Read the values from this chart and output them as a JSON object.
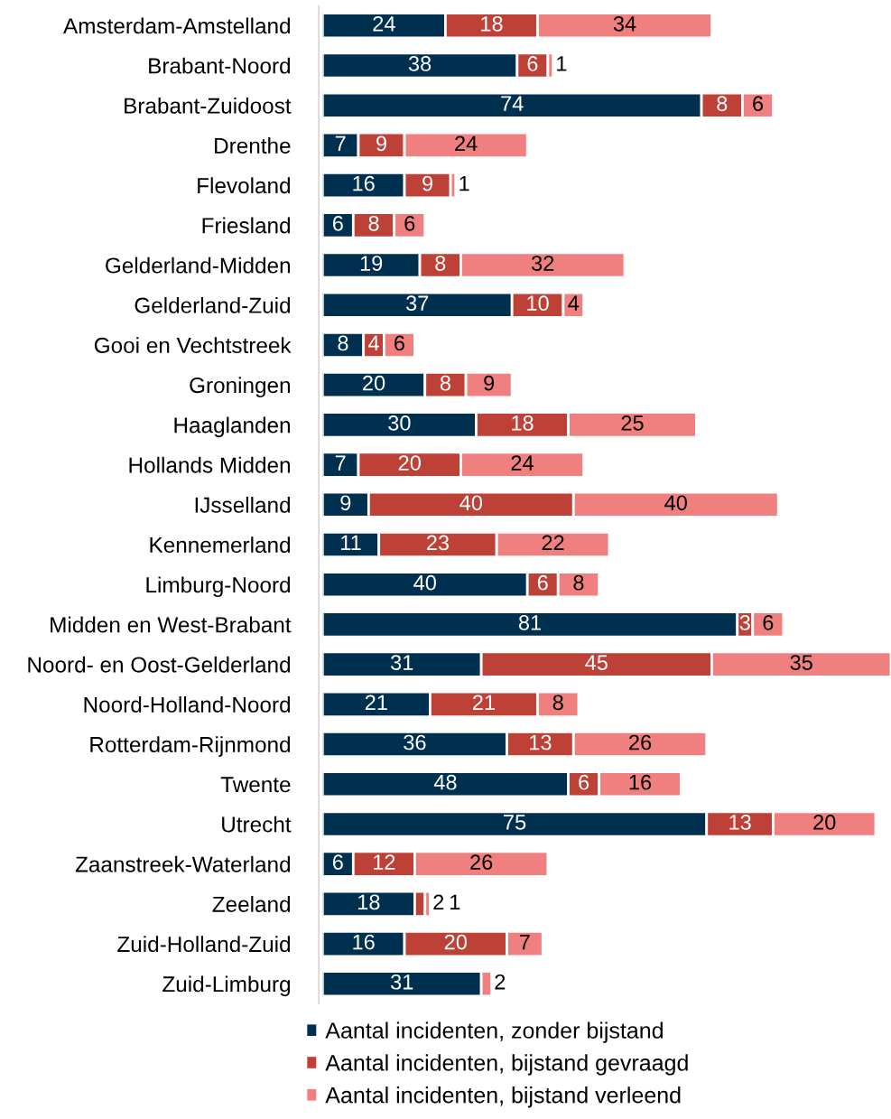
{
  "chart_data": {
    "type": "bar",
    "orientation": "horizontal",
    "stacked": true,
    "categories": [
      "Amsterdam-Amstelland",
      "Brabant-Noord",
      "Brabant-Zuidoost",
      "Drenthe",
      "Flevoland",
      "Friesland",
      "Gelderland-Midden",
      "Gelderland-Zuid",
      "Gooi en Vechtstreek",
      "Groningen",
      "Haaglanden",
      "Hollands Midden",
      "IJsselland",
      "Kennemerland",
      "Limburg-Noord",
      "Midden en West-Brabant",
      "Noord- en Oost-Gelderland",
      "Noord-Holland-Noord",
      "Rotterdam-Rijnmond",
      "Twente",
      "Utrecht",
      "Zaanstreek-Waterland",
      "Zeeland",
      "Zuid-Holland-Zuid",
      "Zuid-Limburg"
    ],
    "xlim": [
      0,
      111
    ],
    "series": [
      {
        "name": "Aantal incidenten, zonder bijstand",
        "color": "#003050",
        "values": [
          24,
          38,
          74,
          7,
          16,
          6,
          19,
          37,
          8,
          20,
          30,
          7,
          9,
          11,
          40,
          81,
          31,
          21,
          36,
          48,
          75,
          6,
          18,
          16,
          31
        ],
        "value_labels": [
          "24",
          "38",
          "74",
          "7",
          "16",
          "6",
          "19",
          "37",
          "8",
          "20",
          "30",
          "7",
          "9",
          "11",
          "40",
          "81",
          "31",
          "21",
          "36",
          "48",
          "75",
          "6",
          "18",
          "16",
          "31"
        ]
      },
      {
        "name": "Aantal incidenten, bijstand gevraagd",
        "color": "#be4137",
        "values": [
          18,
          6,
          8,
          9,
          9,
          8,
          8,
          10,
          4,
          8,
          18,
          20,
          40,
          23,
          6,
          3,
          45,
          21,
          13,
          6,
          13,
          12,
          2,
          20,
          0
        ],
        "value_labels": [
          "18",
          "6",
          "8",
          "9",
          "9",
          "8",
          "8",
          "10",
          "4",
          "8",
          "18",
          "20",
          "40",
          "23",
          "6",
          "3",
          "45",
          "21",
          "13",
          "6",
          "13",
          "12",
          "2",
          "20",
          null
        ]
      },
      {
        "name": "Aantal incidenten, bijstand verleend",
        "color": "#f08080",
        "values": [
          34,
          1,
          6,
          24,
          1,
          6,
          32,
          4,
          6,
          9,
          25,
          24,
          40,
          22,
          8,
          6,
          35,
          8,
          26,
          16,
          20,
          26,
          1,
          7,
          2
        ],
        "value_labels": [
          "34",
          "1",
          "6",
          "24",
          "1",
          "6",
          "32",
          "4",
          "6",
          "9",
          "25",
          "24",
          "40",
          "22",
          "8",
          "6",
          "35",
          "8",
          "26",
          "16",
          "20",
          "26",
          "1",
          "7",
          "2"
        ]
      }
    ],
    "legend": "bottom",
    "grid": false
  }
}
